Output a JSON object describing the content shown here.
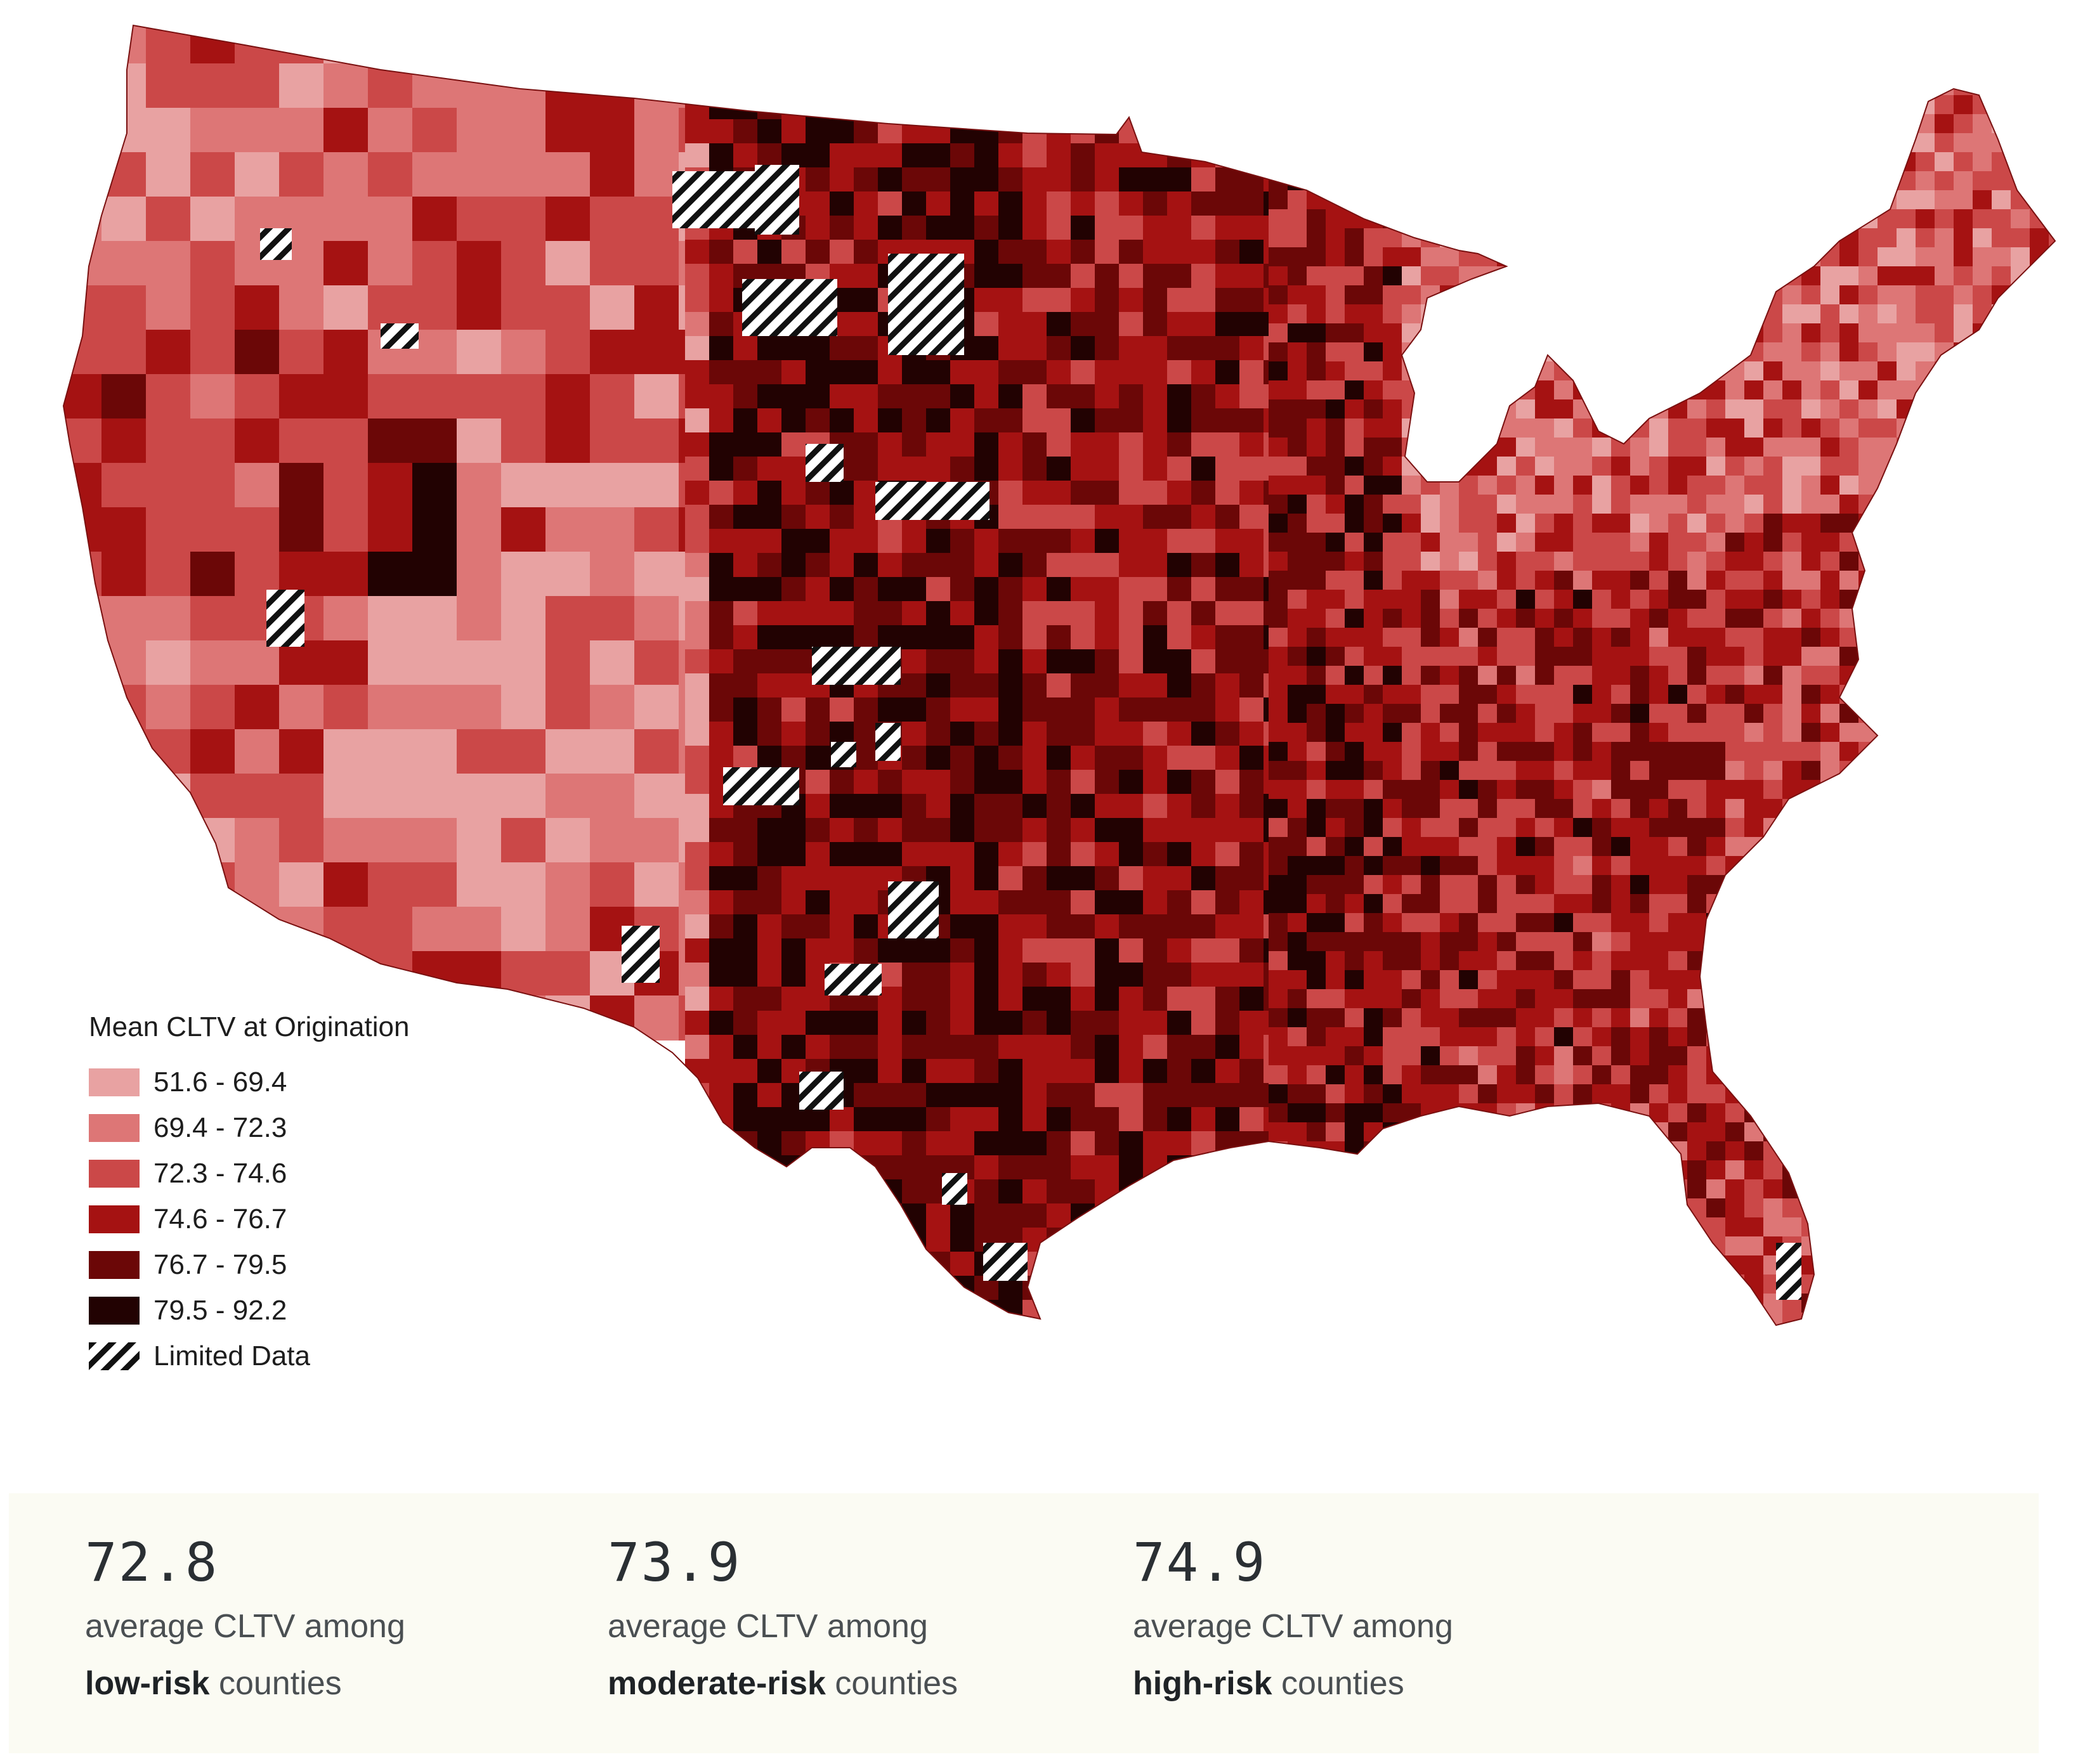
{
  "legend": {
    "title": "Mean CLTV at Origination",
    "items": [
      {
        "label": "51.6 - 69.4",
        "color": "#e8a2a2"
      },
      {
        "label": "69.4 - 72.3",
        "color": "#dd7676"
      },
      {
        "label": "72.3 - 74.6",
        "color": "#cb4848"
      },
      {
        "label": "74.6 - 76.7",
        "color": "#a51212"
      },
      {
        "label": "76.7 - 79.5",
        "color": "#6b0707"
      },
      {
        "label": "79.5 - 92.2",
        "color": "#220202"
      }
    ],
    "limited_label": "Limited Data"
  },
  "stats": [
    {
      "value": "72.8",
      "line1": "average CLTV among",
      "bold": "low-risk",
      "rest": " counties"
    },
    {
      "value": "73.9",
      "line1": "average CLTV among",
      "bold": "moderate-risk",
      "rest": " counties"
    },
    {
      "value": "74.9",
      "line1": "average CLTV among",
      "bold": "high-risk",
      "rest": " counties"
    }
  ]
}
